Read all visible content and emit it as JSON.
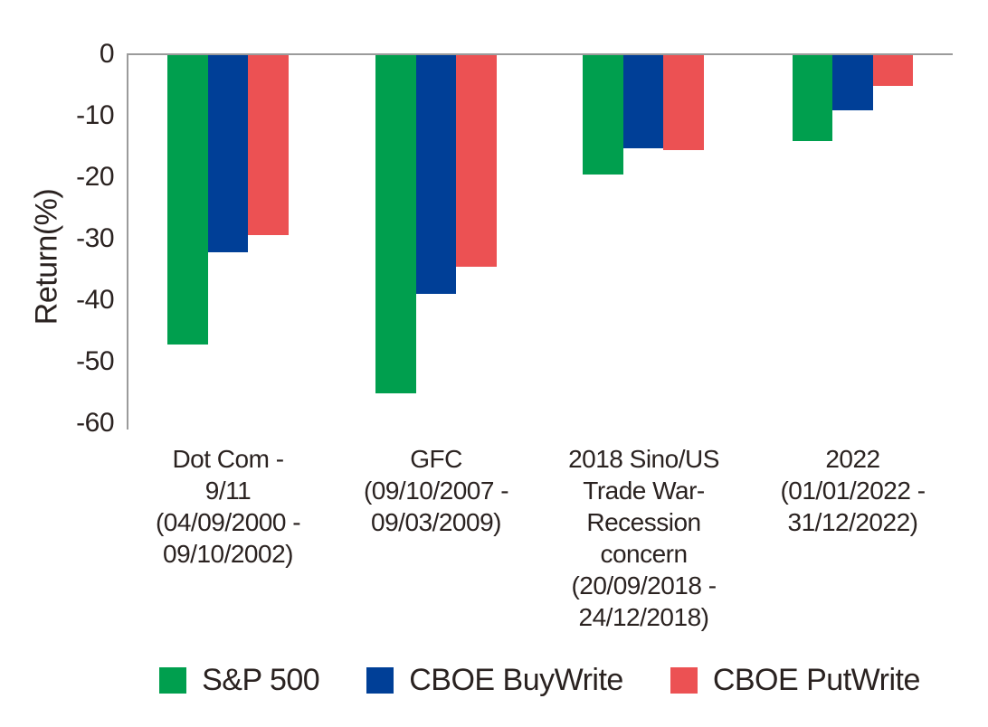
{
  "chart_data": {
    "type": "bar",
    "title": "",
    "xlabel": "",
    "ylabel": "Return(%)",
    "ylim": [
      -60,
      0
    ],
    "yticks": [
      0,
      -10,
      -20,
      -30,
      -40,
      -50,
      -60
    ],
    "ytick_labels": [
      "0",
      "-10",
      "-20",
      "-30",
      "-40",
      "-50",
      "-60"
    ],
    "grid": false,
    "legend_position": "bottom",
    "categories": [
      "Dot Com -\n9/11\n(04/09/2000 -\n09/10/2002)",
      "GFC\n(09/10/2007 -\n09/03/2009)",
      "2018 Sino/US\nTrade War-\nRecession\nconcern\n(20/09/2018 -\n24/12/2018)",
      "2022\n(01/01/2022 -\n31/12/2022)"
    ],
    "series": [
      {
        "name": "S&P 500",
        "color": "#009F4E",
        "values": [
          -47.0,
          -55.0,
          -19.4,
          -13.9
        ]
      },
      {
        "name": "CBOE BuyWrite",
        "color": "#003F97",
        "values": [
          -32.0,
          -38.8,
          -15.1,
          -8.9
        ]
      },
      {
        "name": "CBOE PutWrite",
        "color": "#EC5153",
        "values": [
          -29.3,
          -34.4,
          -15.4,
          -5.0
        ]
      }
    ]
  },
  "colors": {
    "axis": "#9B9B9B",
    "text": "#2A2220",
    "background": "#FFFFFF"
  }
}
